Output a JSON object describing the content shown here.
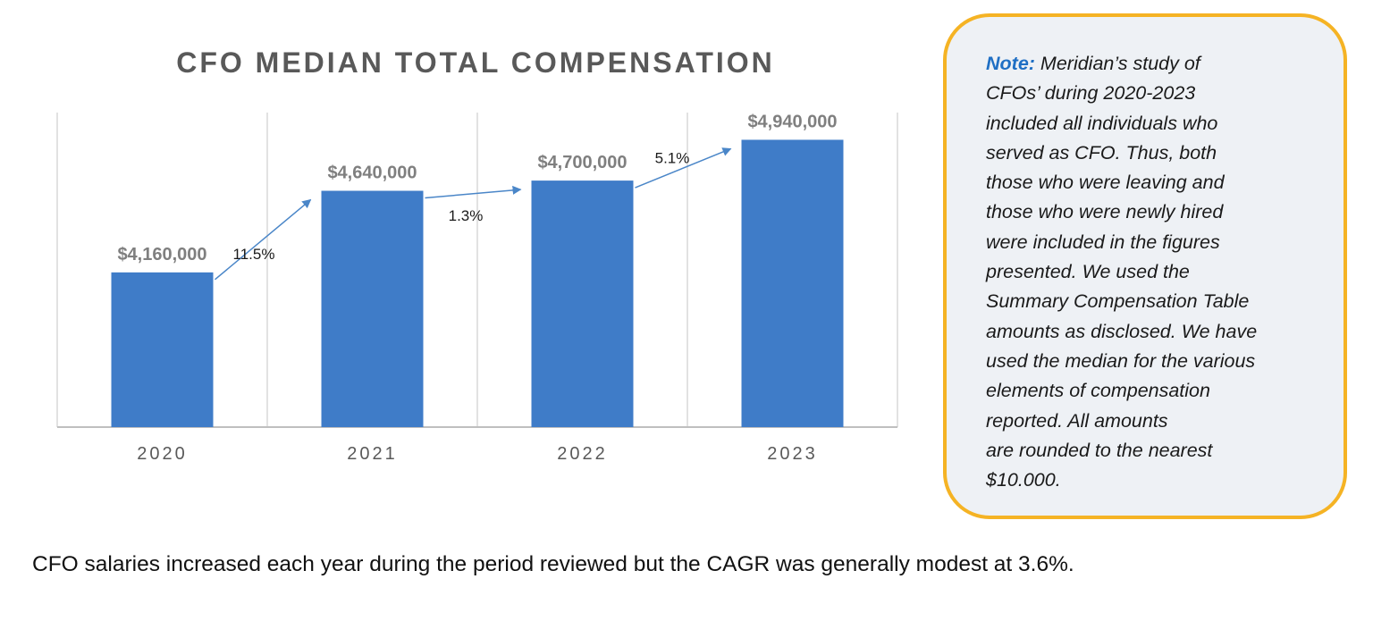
{
  "chart_data": {
    "type": "bar",
    "title": "CFO MEDIAN TOTAL COMPENSATION",
    "categories": [
      "2020",
      "2021",
      "2022",
      "2023"
    ],
    "values": [
      4160000,
      4640000,
      4700000,
      4940000
    ],
    "data_labels": [
      "$4,160,000",
      "$4,640,000",
      "$4,700,000",
      "$4,940,000"
    ],
    "growth_labels": [
      "11.5%",
      "1.3%",
      "5.1%"
    ],
    "ylim": [
      3250000,
      5100000
    ],
    "grid": "vertical",
    "bar_color": "#3f7cc8",
    "arrow_color": "#4a86c8",
    "data_label_color": "#7f7f7f",
    "axis_label_color": "#595959"
  },
  "note": {
    "label": "Note:",
    "text": " Meridian’s study of\nCFOs’ during 2020-2023\nincluded all individuals who\nserved as CFO. Thus, both\nthose who were leaving and\nthose who were newly hired\nwere included in the figures\npresented. We used the\nSummary Compensation Table\namounts as disclosed. We have\nused the median for the various\nelements of compensation\nreported. All amounts\nare rounded to the nearest\n$10.000.",
    "border_color": "#f5b324",
    "background_color": "#eef1f5",
    "label_color": "#1f6fc4"
  },
  "caption": "CFO salaries increased each year during the period reviewed but the CAGR was generally modest at 3.6%."
}
